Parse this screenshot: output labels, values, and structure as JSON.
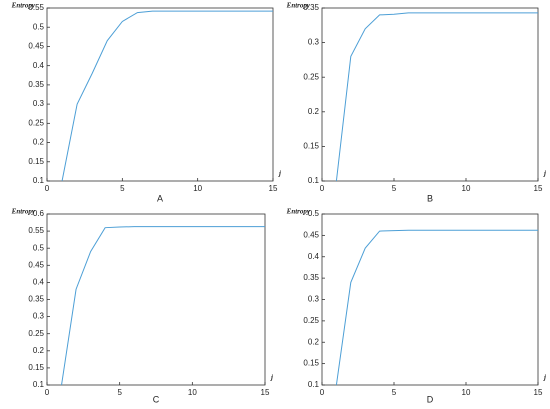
{
  "chart_data": [
    {
      "type": "line",
      "title": "A",
      "y_label": "Entropy",
      "x_label": "j",
      "x": [
        1,
        2,
        3,
        4,
        5,
        6,
        7,
        8,
        9,
        10,
        11,
        12,
        13,
        14,
        15
      ],
      "values": [
        0.1,
        0.3,
        0.38,
        0.465,
        0.515,
        0.538,
        0.542,
        0.542,
        0.542,
        0.542,
        0.542,
        0.542,
        0.542,
        0.542,
        0.542
      ],
      "color": "#4d9fd6",
      "xlim": [
        0,
        15
      ],
      "xticks": [
        0,
        5,
        10,
        15
      ],
      "ylim": [
        0.1,
        0.55
      ],
      "yticks": [
        0.1,
        0.15,
        0.2,
        0.25,
        0.3,
        0.35,
        0.4,
        0.45,
        0.5,
        0.55
      ]
    },
    {
      "type": "line",
      "title": "B",
      "y_label": "Entropy",
      "x_label": "j",
      "x": [
        1,
        2,
        3,
        4,
        5,
        6,
        7,
        8,
        9,
        10,
        11,
        12,
        13,
        14,
        15
      ],
      "values": [
        0.1,
        0.28,
        0.32,
        0.34,
        0.341,
        0.343,
        0.343,
        0.343,
        0.343,
        0.343,
        0.343,
        0.343,
        0.343,
        0.343,
        0.343
      ],
      "color": "#4d9fd6",
      "xlim": [
        0,
        15
      ],
      "xticks": [
        0,
        5,
        10,
        15
      ],
      "ylim": [
        0.1,
        0.35
      ],
      "yticks": [
        0.1,
        0.15,
        0.2,
        0.25,
        0.3,
        0.35
      ]
    },
    {
      "type": "line",
      "title": "C",
      "y_label": "Entropy",
      "x_label": "j",
      "x": [
        1,
        2,
        3,
        4,
        5,
        6,
        7,
        8,
        9,
        10,
        11,
        12,
        13,
        14,
        15
      ],
      "values": [
        0.1,
        0.38,
        0.49,
        0.56,
        0.562,
        0.563,
        0.563,
        0.563,
        0.563,
        0.563,
        0.563,
        0.563,
        0.563,
        0.563,
        0.563
      ],
      "color": "#4d9fd6",
      "xlim": [
        0,
        15
      ],
      "xticks": [
        0,
        5,
        10,
        15
      ],
      "ylim": [
        0.1,
        0.6
      ],
      "yticks": [
        0.1,
        0.15,
        0.2,
        0.25,
        0.3,
        0.35,
        0.4,
        0.45,
        0.5,
        0.55,
        0.6
      ]
    },
    {
      "type": "line",
      "title": "D",
      "y_label": "Entropy",
      "x_label": "j",
      "x": [
        1,
        2,
        3,
        4,
        5,
        6,
        7,
        8,
        9,
        10,
        11,
        12,
        13,
        14,
        15
      ],
      "values": [
        0.1,
        0.34,
        0.42,
        0.46,
        0.461,
        0.462,
        0.462,
        0.462,
        0.462,
        0.462,
        0.462,
        0.462,
        0.462,
        0.462,
        0.462
      ],
      "color": "#4d9fd6",
      "xlim": [
        0,
        15
      ],
      "xticks": [
        0,
        5,
        10,
        15
      ],
      "ylim": [
        0.1,
        0.5
      ],
      "yticks": [
        0.1,
        0.15,
        0.2,
        0.25,
        0.3,
        0.35,
        0.4,
        0.45,
        0.5
      ]
    }
  ]
}
